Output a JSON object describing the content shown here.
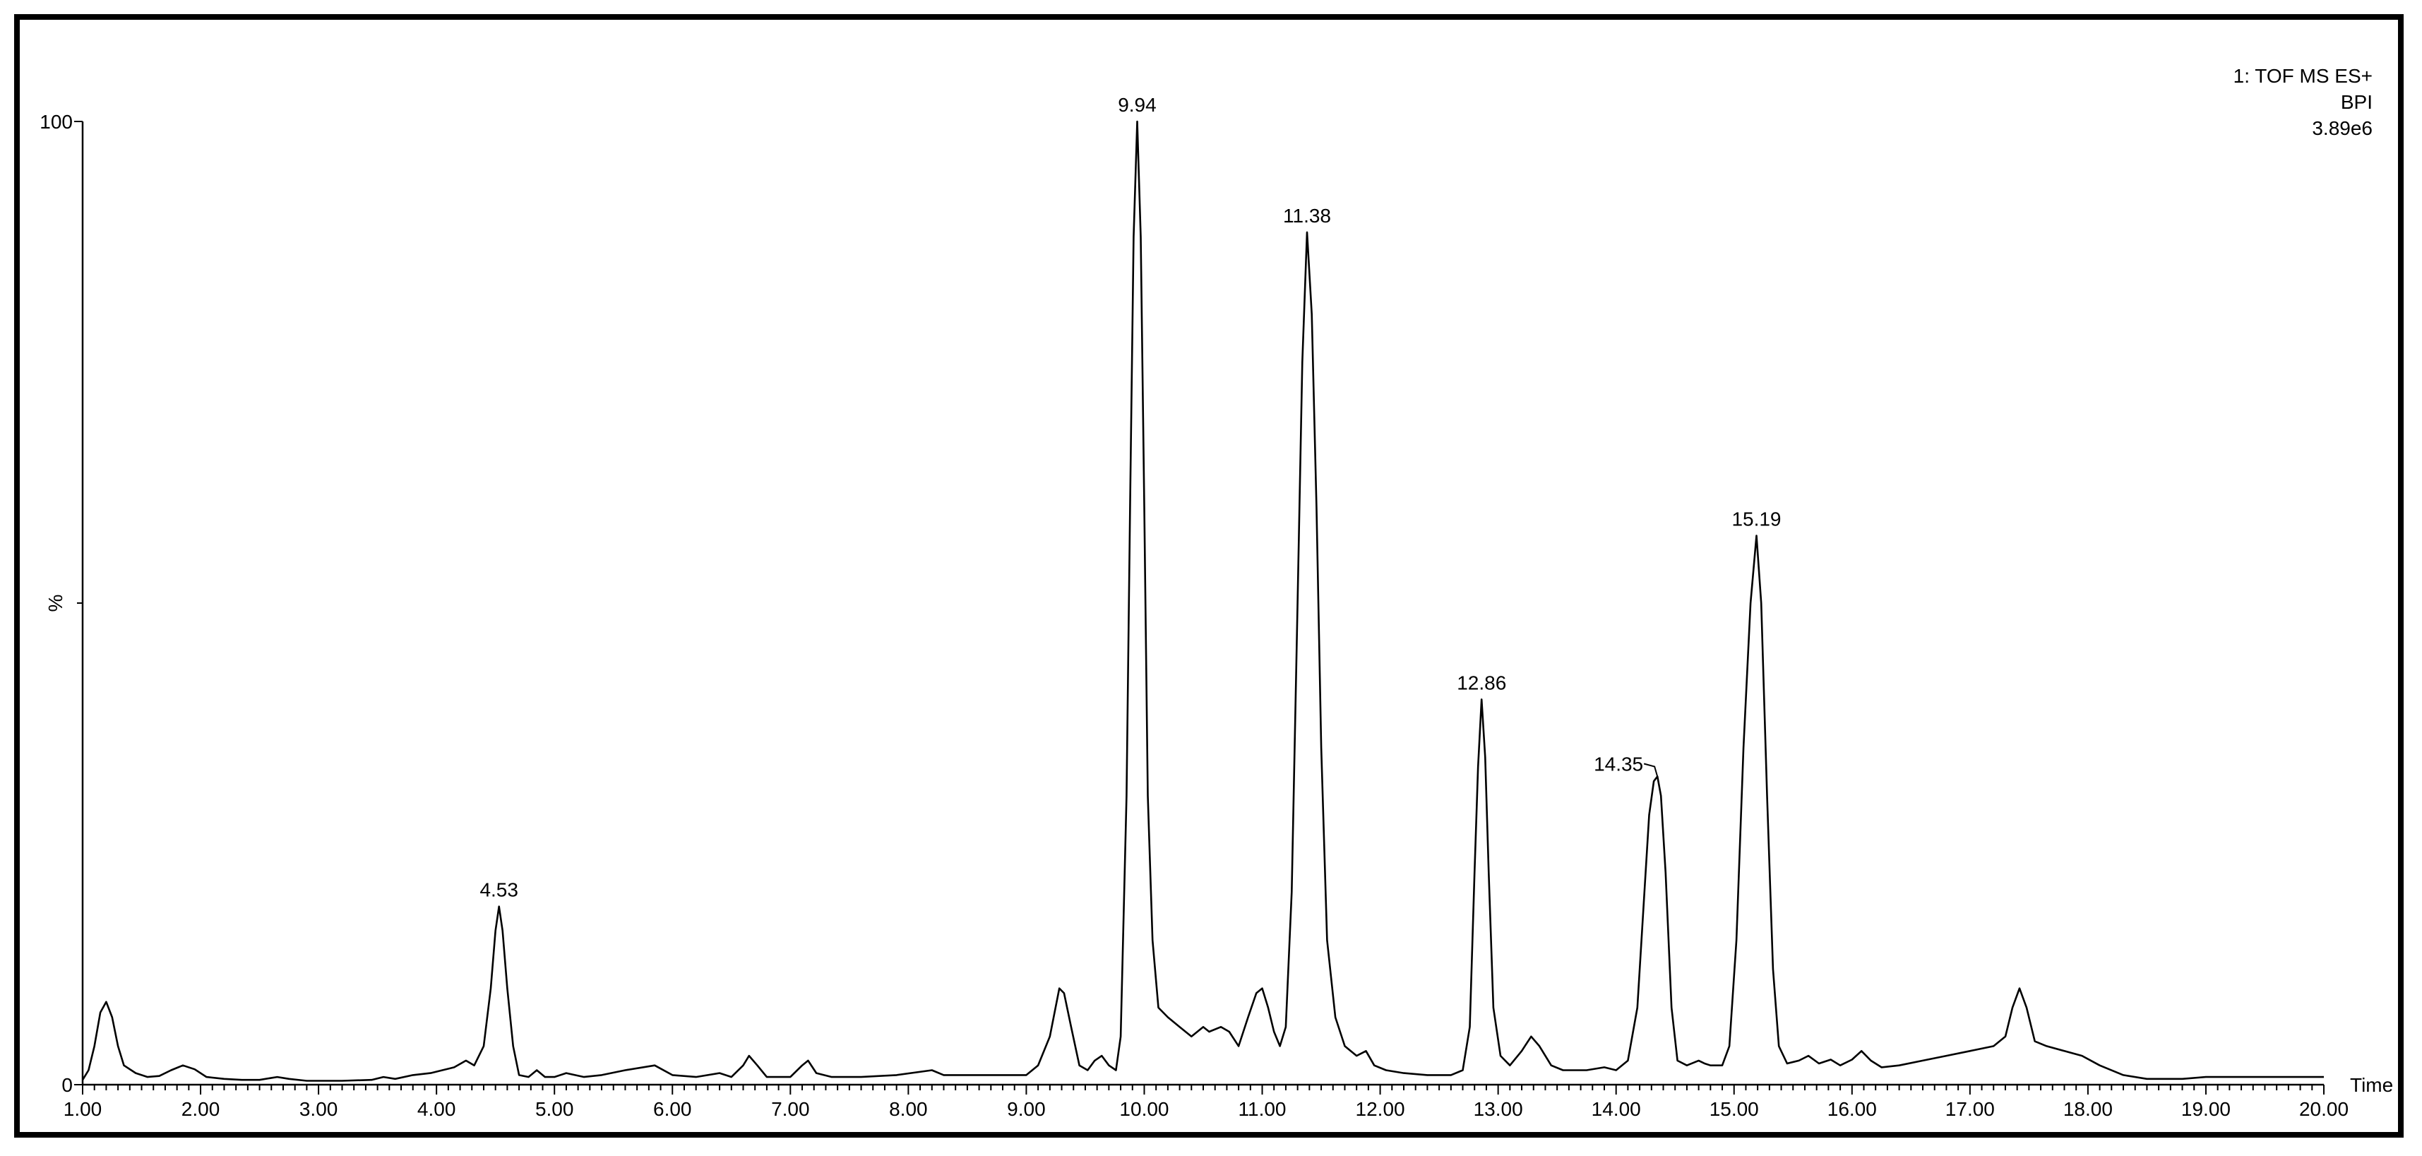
{
  "chart_data": {
    "type": "line",
    "title_lines": [
      "1: TOF MS ES+",
      "BPI",
      "3.89e6"
    ],
    "xlabel": "Time",
    "ylabel": "%",
    "xlim": [
      1.0,
      20.0
    ],
    "ylim": [
      0,
      100
    ],
    "x_ticks": [
      "1.00",
      "2.00",
      "3.00",
      "4.00",
      "5.00",
      "6.00",
      "7.00",
      "8.00",
      "9.00",
      "10.00",
      "11.00",
      "12.00",
      "13.00",
      "14.00",
      "15.00",
      "16.00",
      "17.00",
      "18.00",
      "19.00",
      "20.00"
    ],
    "y_ticks": [
      "0",
      "100"
    ],
    "grid": false,
    "peak_labels": [
      {
        "x": 4.53,
        "y": 18.5,
        "label": "4.53"
      },
      {
        "x": 9.94,
        "y": 100,
        "label": "9.94"
      },
      {
        "x": 11.38,
        "y": 88.5,
        "label": "11.38"
      },
      {
        "x": 12.86,
        "y": 40,
        "label": "12.86"
      },
      {
        "x": 14.35,
        "y": 32,
        "label": "14.35"
      },
      {
        "x": 15.19,
        "y": 57,
        "label": "15.19"
      }
    ],
    "series": [
      {
        "color": "#000000",
        "points": [
          [
            1.0,
            0.5
          ],
          [
            1.05,
            1.5
          ],
          [
            1.1,
            4.0
          ],
          [
            1.15,
            7.5
          ],
          [
            1.2,
            8.6
          ],
          [
            1.25,
            7.0
          ],
          [
            1.3,
            4.0
          ],
          [
            1.35,
            2.0
          ],
          [
            1.45,
            1.2
          ],
          [
            1.55,
            0.8
          ],
          [
            1.65,
            0.9
          ],
          [
            1.75,
            1.5
          ],
          [
            1.85,
            2.0
          ],
          [
            1.95,
            1.6
          ],
          [
            2.05,
            0.8
          ],
          [
            2.2,
            0.6
          ],
          [
            2.35,
            0.5
          ],
          [
            2.5,
            0.5
          ],
          [
            2.65,
            0.8
          ],
          [
            2.75,
            0.6
          ],
          [
            2.9,
            0.4
          ],
          [
            3.2,
            0.4
          ],
          [
            3.45,
            0.5
          ],
          [
            3.55,
            0.8
          ],
          [
            3.65,
            0.6
          ],
          [
            3.8,
            1.0
          ],
          [
            3.95,
            1.2
          ],
          [
            4.05,
            1.5
          ],
          [
            4.15,
            1.8
          ],
          [
            4.25,
            2.5
          ],
          [
            4.32,
            2.0
          ],
          [
            4.4,
            4.0
          ],
          [
            4.46,
            10.0
          ],
          [
            4.5,
            16.0
          ],
          [
            4.53,
            18.5
          ],
          [
            4.56,
            16.0
          ],
          [
            4.6,
            10.0
          ],
          [
            4.65,
            4.0
          ],
          [
            4.7,
            1.0
          ],
          [
            4.78,
            0.8
          ],
          [
            4.85,
            1.5
          ],
          [
            4.92,
            0.8
          ],
          [
            5.0,
            0.8
          ],
          [
            5.1,
            1.2
          ],
          [
            5.25,
            0.8
          ],
          [
            5.4,
            1.0
          ],
          [
            5.6,
            1.5
          ],
          [
            5.85,
            2.0
          ],
          [
            6.0,
            1.0
          ],
          [
            6.2,
            0.8
          ],
          [
            6.4,
            1.2
          ],
          [
            6.5,
            0.8
          ],
          [
            6.6,
            2.0
          ],
          [
            6.65,
            3.0
          ],
          [
            6.72,
            2.0
          ],
          [
            6.8,
            0.8
          ],
          [
            7.0,
            0.8
          ],
          [
            7.1,
            2.0
          ],
          [
            7.15,
            2.5
          ],
          [
            7.22,
            1.2
          ],
          [
            7.35,
            0.8
          ],
          [
            7.6,
            0.8
          ],
          [
            7.9,
            1.0
          ],
          [
            8.2,
            1.5
          ],
          [
            8.3,
            1.0
          ],
          [
            8.6,
            1.0
          ],
          [
            8.9,
            1.0
          ],
          [
            9.0,
            1.0
          ],
          [
            9.1,
            2.0
          ],
          [
            9.2,
            5.0
          ],
          [
            9.28,
            10.0
          ],
          [
            9.32,
            9.5
          ],
          [
            9.38,
            6.0
          ],
          [
            9.45,
            2.0
          ],
          [
            9.52,
            1.5
          ],
          [
            9.58,
            2.5
          ],
          [
            9.64,
            3.0
          ],
          [
            9.7,
            2.0
          ],
          [
            9.76,
            1.5
          ],
          [
            9.8,
            5.0
          ],
          [
            9.85,
            30.0
          ],
          [
            9.88,
            60.0
          ],
          [
            9.91,
            88.0
          ],
          [
            9.94,
            100.0
          ],
          [
            9.97,
            88.0
          ],
          [
            10.0,
            60.0
          ],
          [
            10.03,
            30.0
          ],
          [
            10.07,
            15.0
          ],
          [
            10.12,
            8.0
          ],
          [
            10.2,
            7.0
          ],
          [
            10.3,
            6.0
          ],
          [
            10.4,
            5.0
          ],
          [
            10.5,
            6.0
          ],
          [
            10.55,
            5.5
          ],
          [
            10.65,
            6.0
          ],
          [
            10.72,
            5.5
          ],
          [
            10.8,
            4.0
          ],
          [
            10.88,
            7.0
          ],
          [
            10.95,
            9.5
          ],
          [
            11.0,
            10.0
          ],
          [
            11.05,
            8.0
          ],
          [
            11.1,
            5.5
          ],
          [
            11.15,
            4.0
          ],
          [
            11.2,
            6.0
          ],
          [
            11.25,
            20.0
          ],
          [
            11.3,
            50.0
          ],
          [
            11.34,
            75.0
          ],
          [
            11.38,
            88.5
          ],
          [
            11.42,
            80.0
          ],
          [
            11.46,
            60.0
          ],
          [
            11.5,
            35.0
          ],
          [
            11.55,
            15.0
          ],
          [
            11.62,
            7.0
          ],
          [
            11.7,
            4.0
          ],
          [
            11.8,
            3.0
          ],
          [
            11.88,
            3.5
          ],
          [
            11.95,
            2.0
          ],
          [
            12.05,
            1.5
          ],
          [
            12.2,
            1.2
          ],
          [
            12.4,
            1.0
          ],
          [
            12.6,
            1.0
          ],
          [
            12.7,
            1.5
          ],
          [
            12.76,
            6.0
          ],
          [
            12.8,
            22.0
          ],
          [
            12.83,
            33.0
          ],
          [
            12.86,
            40.0
          ],
          [
            12.89,
            34.0
          ],
          [
            12.92,
            22.0
          ],
          [
            12.96,
            8.0
          ],
          [
            13.02,
            3.0
          ],
          [
            13.1,
            2.0
          ],
          [
            13.2,
            3.5
          ],
          [
            13.28,
            5.0
          ],
          [
            13.35,
            4.0
          ],
          [
            13.45,
            2.0
          ],
          [
            13.55,
            1.5
          ],
          [
            13.75,
            1.5
          ],
          [
            13.9,
            1.8
          ],
          [
            14.0,
            1.5
          ],
          [
            14.1,
            2.5
          ],
          [
            14.18,
            8.0
          ],
          [
            14.24,
            20.0
          ],
          [
            14.28,
            28.0
          ],
          [
            14.32,
            31.5
          ],
          [
            14.35,
            32.0
          ],
          [
            14.38,
            30.0
          ],
          [
            14.42,
            22.0
          ],
          [
            14.47,
            8.0
          ],
          [
            14.52,
            2.5
          ],
          [
            14.6,
            2.0
          ],
          [
            14.7,
            2.5
          ],
          [
            14.75,
            2.2
          ],
          [
            14.8,
            2.0
          ],
          [
            14.9,
            2.0
          ],
          [
            14.96,
            4.0
          ],
          [
            15.02,
            15.0
          ],
          [
            15.08,
            35.0
          ],
          [
            15.14,
            50.0
          ],
          [
            15.19,
            57.0
          ],
          [
            15.23,
            50.0
          ],
          [
            15.28,
            30.0
          ],
          [
            15.33,
            12.0
          ],
          [
            15.38,
            4.0
          ],
          [
            15.45,
            2.2
          ],
          [
            15.55,
            2.5
          ],
          [
            15.63,
            3.0
          ],
          [
            15.72,
            2.2
          ],
          [
            15.82,
            2.6
          ],
          [
            15.9,
            2.0
          ],
          [
            16.0,
            2.6
          ],
          [
            16.08,
            3.5
          ],
          [
            16.16,
            2.5
          ],
          [
            16.25,
            1.8
          ],
          [
            16.4,
            2.0
          ],
          [
            16.6,
            2.5
          ],
          [
            16.8,
            3.0
          ],
          [
            17.0,
            3.5
          ],
          [
            17.2,
            4.0
          ],
          [
            17.3,
            5.0
          ],
          [
            17.36,
            8.0
          ],
          [
            17.42,
            10.0
          ],
          [
            17.48,
            8.0
          ],
          [
            17.55,
            4.5
          ],
          [
            17.65,
            4.0
          ],
          [
            17.8,
            3.5
          ],
          [
            17.95,
            3.0
          ],
          [
            18.1,
            2.0
          ],
          [
            18.3,
            1.0
          ],
          [
            18.5,
            0.6
          ],
          [
            18.8,
            0.6
          ],
          [
            19.0,
            0.8
          ],
          [
            19.2,
            0.8
          ],
          [
            19.6,
            0.8
          ],
          [
            20.0,
            0.8
          ]
        ]
      }
    ]
  }
}
